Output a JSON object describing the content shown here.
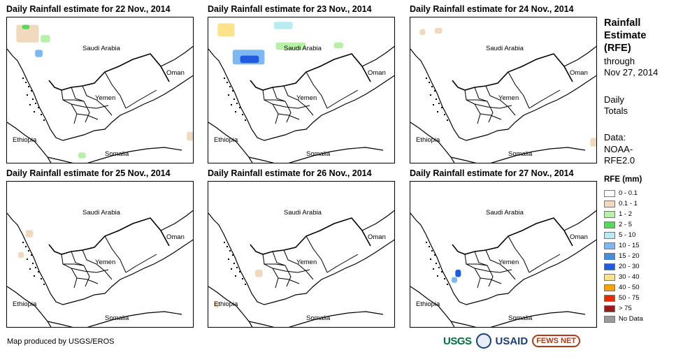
{
  "panels": [
    {
      "title": "Daily Rainfall estimate for 22 Nov., 2014"
    },
    {
      "title": "Daily Rainfall estimate for 23 Nov., 2014"
    },
    {
      "title": "Daily Rainfall estimate for 24 Nov., 2014"
    },
    {
      "title": "Daily Rainfall estimate for 25 Nov., 2014"
    },
    {
      "title": "Daily Rainfall estimate for 26 Nov., 2014"
    },
    {
      "title": "Daily Rainfall estimate for 27 Nov., 2014"
    }
  ],
  "countries": {
    "saudi": "Saudi Arabia",
    "oman": "Oman",
    "yemen": "Yemen",
    "ethiopia": "Ethiopia",
    "somalia": "Somalia"
  },
  "side": {
    "title_lines": [
      "Rainfall",
      "Estimate",
      "(RFE)"
    ],
    "through": "through",
    "date": "Nov 27, 2014",
    "daily": "Daily",
    "totals": "Totals",
    "data_label": "Data:",
    "source1": "NOAA-",
    "source2": "RFE2.0"
  },
  "legend": {
    "title": "RFE (mm)",
    "items": [
      {
        "label": "0 - 0.1",
        "color": "#ffffff"
      },
      {
        "label": "0.1 - 1",
        "color": "#f0d9bc"
      },
      {
        "label": "1 - 2",
        "color": "#b7f0a6"
      },
      {
        "label": "2 - 5",
        "color": "#5ad65a"
      },
      {
        "label": "5 - 10",
        "color": "#b8ecf2"
      },
      {
        "label": "10 - 15",
        "color": "#7fb8f0"
      },
      {
        "label": "15 - 20",
        "color": "#3d8fe8"
      },
      {
        "label": "20 - 30",
        "color": "#1f5ce0"
      },
      {
        "label": "30 - 40",
        "color": "#fce28a"
      },
      {
        "label": "40 - 50",
        "color": "#f5a300"
      },
      {
        "label": "50 - 75",
        "color": "#f02a00"
      },
      {
        "label": "> 75",
        "color": "#a01818"
      },
      {
        "label": "No Data",
        "color": "#9a9a9a"
      }
    ]
  },
  "credit": "Map produced by USGS/EROS",
  "logos": {
    "usgs": "USGS",
    "usaid": "USAID",
    "fews": "FEWS NET"
  }
}
